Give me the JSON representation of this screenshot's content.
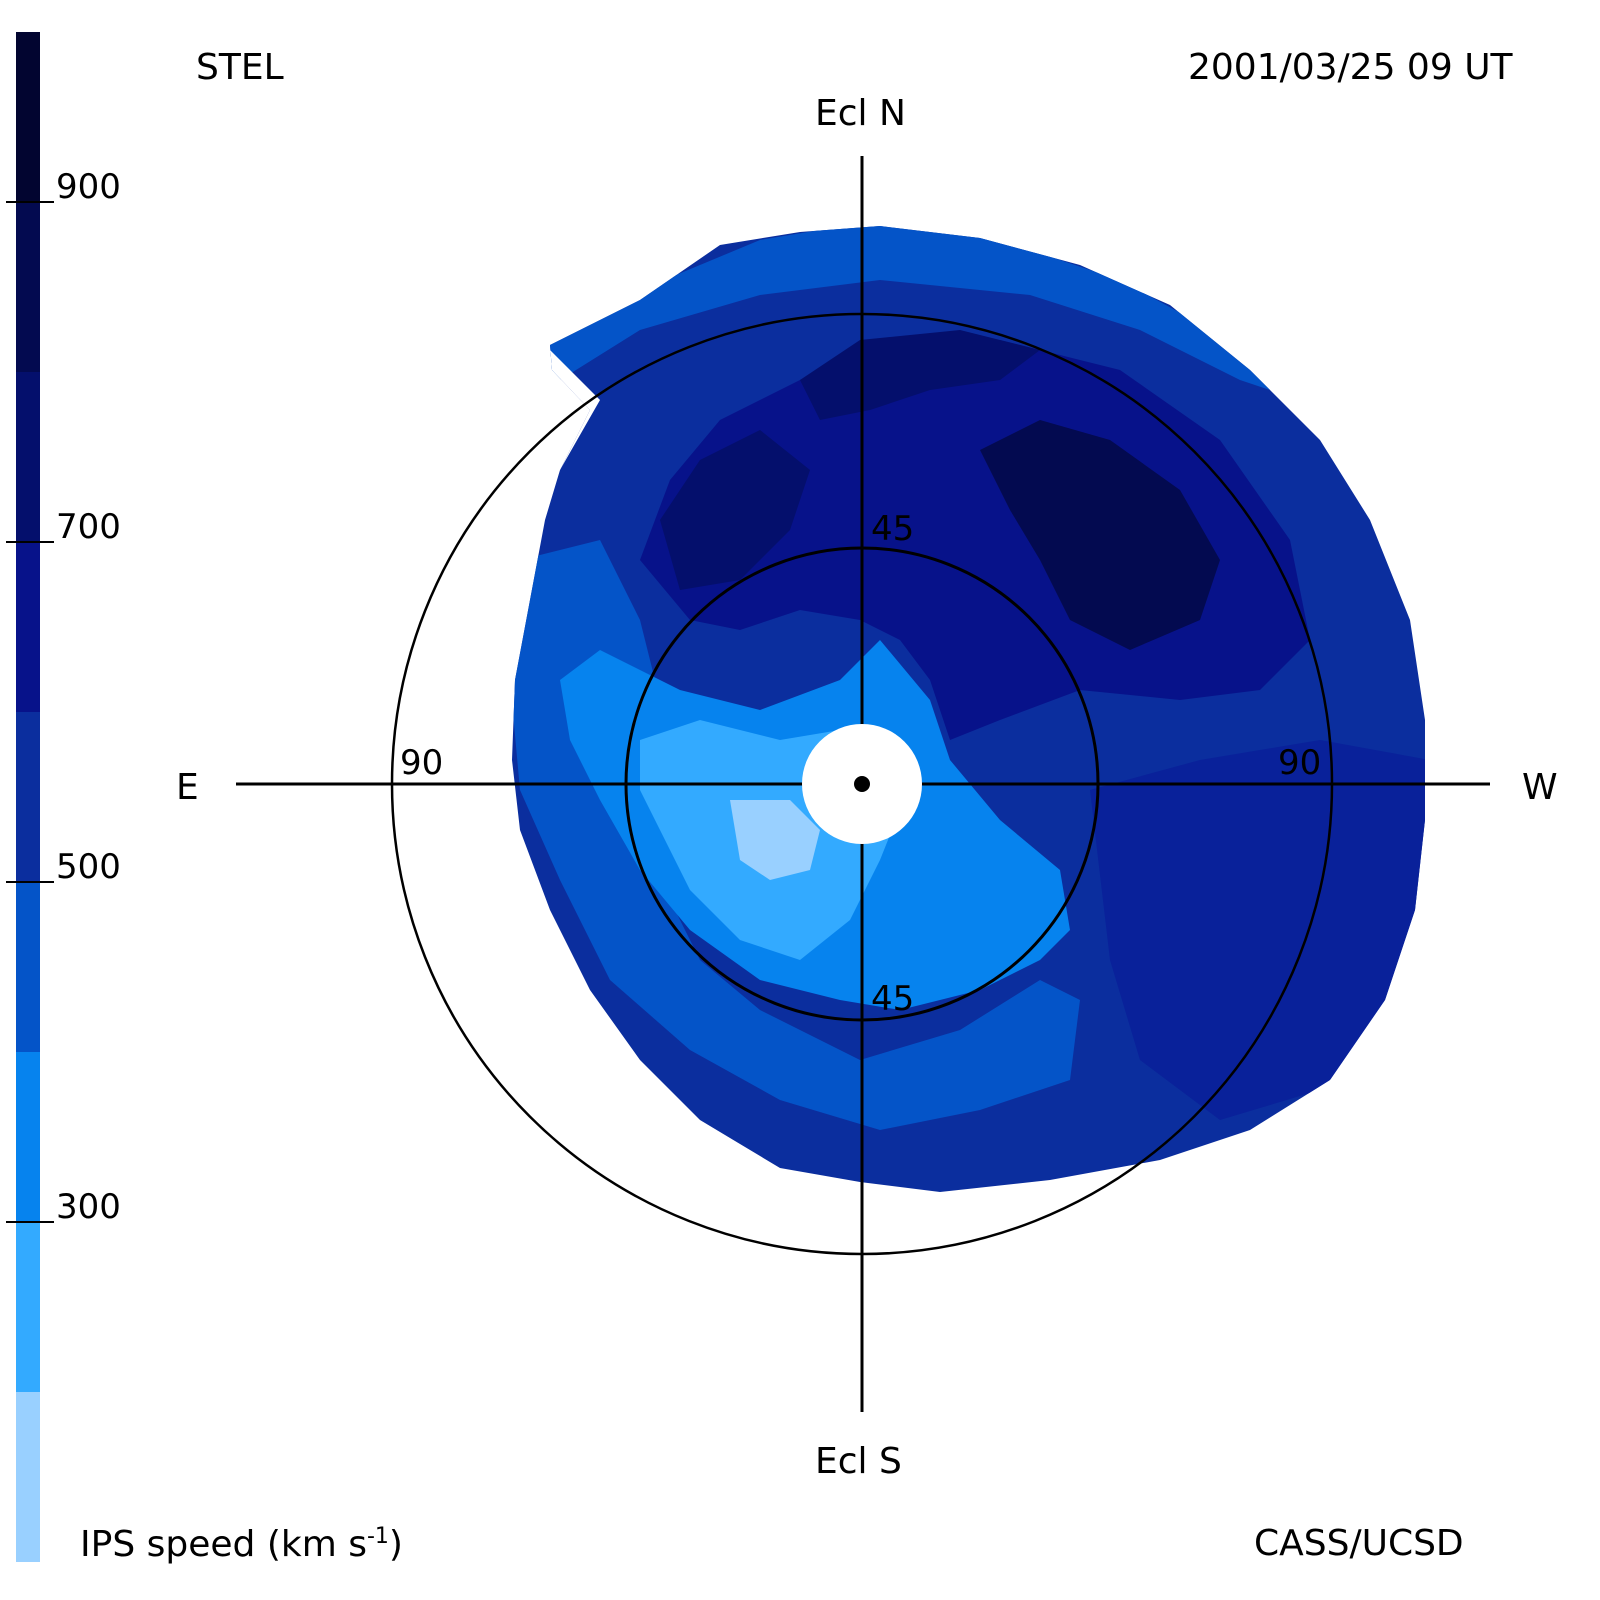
{
  "header": {
    "station": "STEL",
    "datetime": "2001/03/25 09 UT"
  },
  "footer": {
    "credit": "CASS/UCSD",
    "colorbar_label_main": "IPS speed (km s",
    "colorbar_label_exp": "-1",
    "colorbar_label_close": ")"
  },
  "compass": {
    "north": "Ecl N",
    "south": "Ecl S",
    "east": "E",
    "west": "W"
  },
  "rings": {
    "inner_top": "45",
    "inner_bottom": "45",
    "outer_left": "90",
    "outer_right": "90"
  },
  "colorbar": {
    "ticks": [
      "900",
      "700",
      "500",
      "300"
    ],
    "bands": [
      {
        "min": 900,
        "max": 1000,
        "color": "#020530"
      },
      {
        "min": 800,
        "max": 900,
        "color": "#030a50"
      },
      {
        "min": 700,
        "max": 800,
        "color": "#040f6c"
      },
      {
        "min": 600,
        "max": 700,
        "color": "#07128a"
      },
      {
        "min": 500,
        "max": 600,
        "color": "#0b2e9e"
      },
      {
        "min": 400,
        "max": 500,
        "color": "#0454c8"
      },
      {
        "min": 300,
        "max": 400,
        "color": "#0683ee"
      },
      {
        "min": 200,
        "max": 300,
        "color": "#33aaff"
      },
      {
        "min": 100,
        "max": 200,
        "color": "#99d0ff"
      }
    ]
  }
}
